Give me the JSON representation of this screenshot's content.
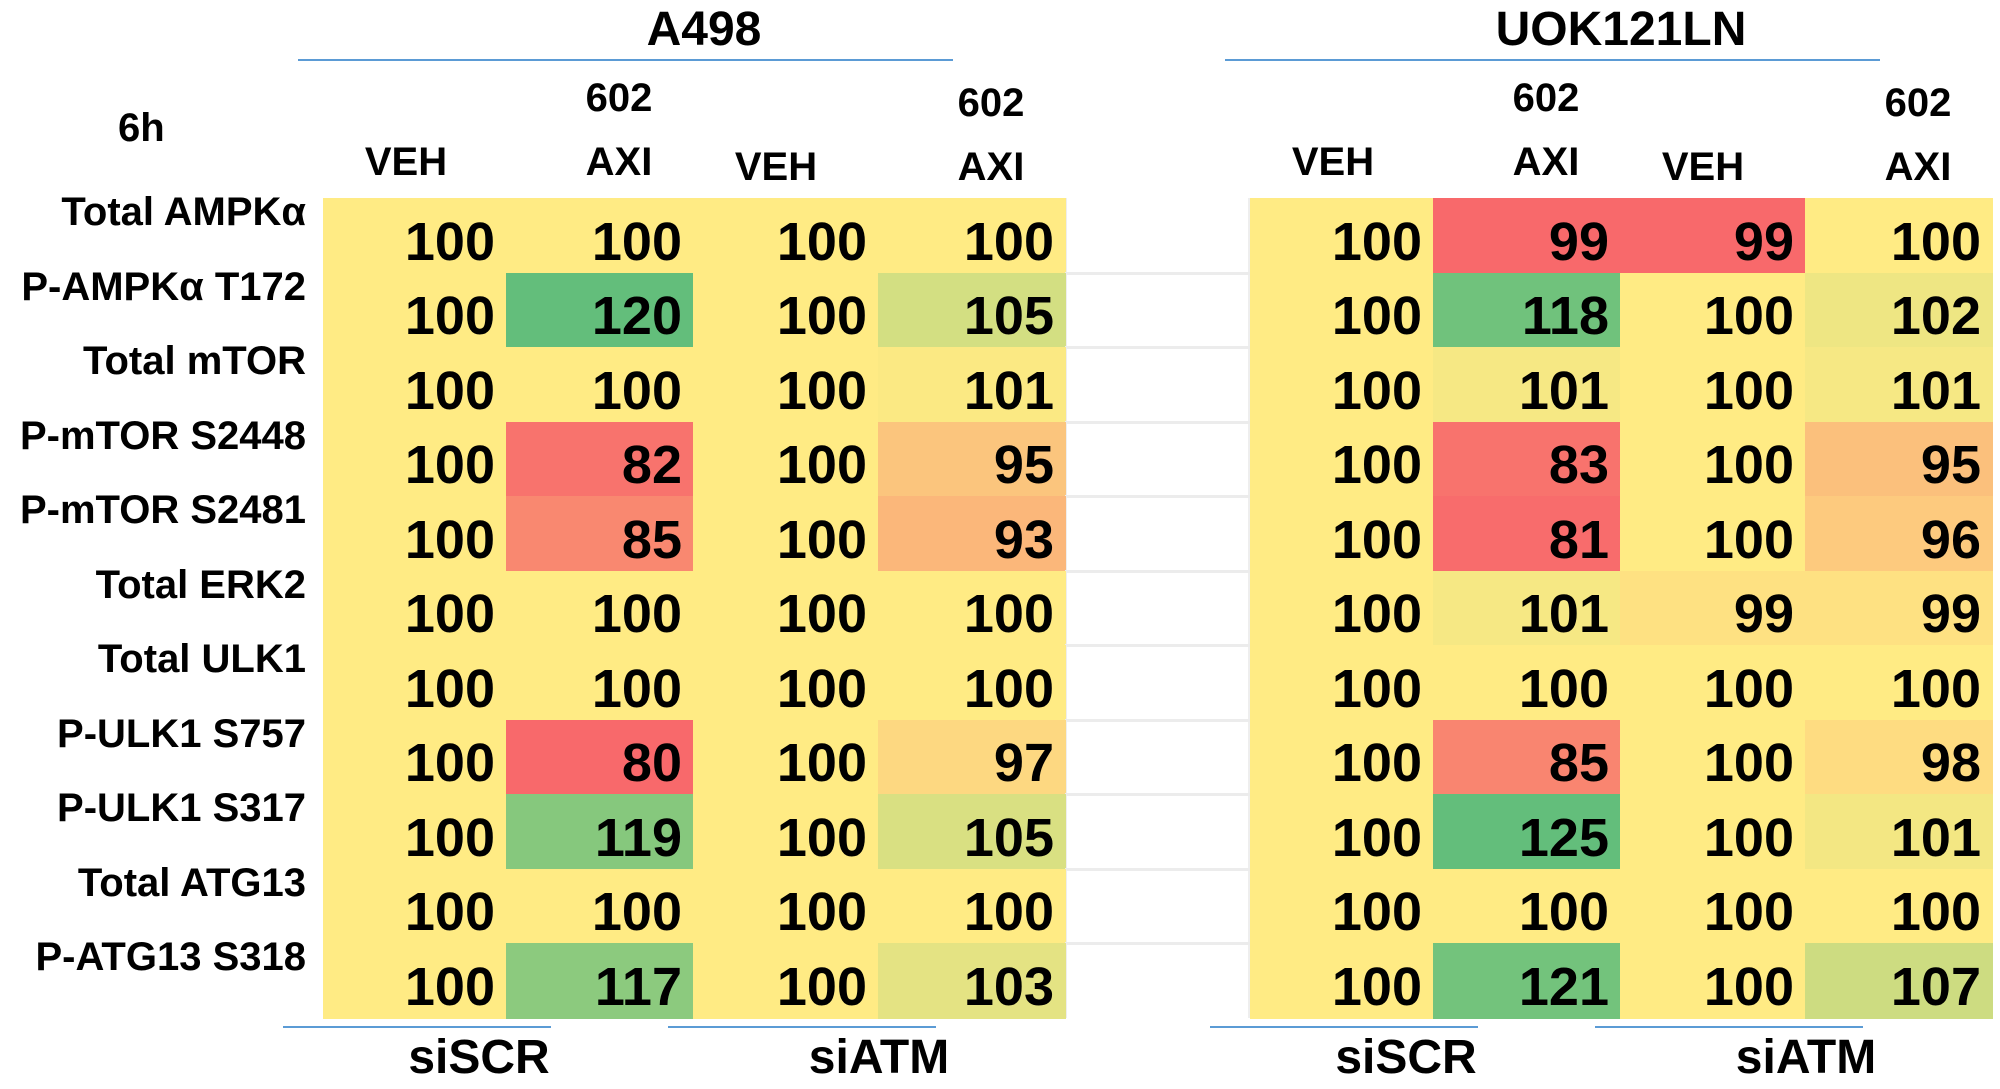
{
  "chart_data": {
    "type": "heatmap",
    "time_label": "6h",
    "cell_lines": [
      "A498",
      "UOK121LN"
    ],
    "groups": [
      "siSCR",
      "siATM"
    ],
    "columns": [
      {
        "line1": "",
        "line2": "VEH"
      },
      {
        "line1": "602",
        "line2": "AXI"
      },
      {
        "line1": "",
        "line2": "VEH"
      },
      {
        "line1": "602",
        "line2": "AXI"
      }
    ],
    "rows": [
      {
        "label": "Total AMPKα",
        "A498": [
          100,
          100,
          100,
          100
        ],
        "A498_colors": [
          "#FFEB84",
          "#FFEB84",
          "#FFEB84",
          "#FFEB84"
        ],
        "A498_mark": "",
        "UOK121LN": [
          100,
          99,
          99,
          100
        ],
        "UOK121LN_colors": [
          "#FFEB84",
          "#F8696B",
          "#F8696B",
          "#FFEB84"
        ],
        "UOK121LN_mark": ""
      },
      {
        "label": "P-AMPKα T172",
        "A498": [
          100,
          120,
          100,
          105
        ],
        "A498_colors": [
          "#FFEB84",
          "#63BE7B",
          "#FFEB84",
          "#D3DF82"
        ],
        "A498_mark": "#",
        "UOK121LN": [
          100,
          118,
          100,
          102
        ],
        "UOK121LN_colors": [
          "#FFEB84",
          "#70C27C",
          "#FFEB84",
          "#EEE683"
        ],
        "UOK121LN_mark": "#"
      },
      {
        "label": "Total mTOR",
        "A498": [
          100,
          100,
          100,
          101
        ],
        "A498_colors": [
          "#FFEB84",
          "#FFEB84",
          "#FFEB84",
          "#FBE983"
        ],
        "A498_mark": "",
        "UOK121LN": [
          100,
          101,
          100,
          101
        ],
        "UOK121LN_colors": [
          "#FFEB84",
          "#F6E884",
          "#FFEB84",
          "#F6E884"
        ],
        "UOK121LN_mark": ""
      },
      {
        "label": "P-mTOR S2448",
        "A498": [
          100,
          82,
          100,
          95
        ],
        "A498_colors": [
          "#FFEB84",
          "#F8736D",
          "#FFEB84",
          "#FBC57D"
        ],
        "A498_mark": "*",
        "UOK121LN": [
          100,
          83,
          100,
          95
        ],
        "UOK121LN_colors": [
          "#FFEB84",
          "#F8736D",
          "#FFEB84",
          "#FBC07C"
        ],
        "UOK121LN_mark": "*"
      },
      {
        "label": "P-mTOR S2481",
        "A498": [
          100,
          85,
          100,
          93
        ],
        "A498_colors": [
          "#FFEB84",
          "#F98870",
          "#FFEB84",
          "#FBB77A"
        ],
        "A498_mark": "*",
        "UOK121LN": [
          100,
          81,
          100,
          96
        ],
        "UOK121LN_colors": [
          "#FFEB84",
          "#F86C6C",
          "#FFEB84",
          "#FDCA7E"
        ],
        "UOK121LN_mark": "*"
      },
      {
        "label": "Total ERK2",
        "A498": [
          100,
          100,
          100,
          100
        ],
        "A498_colors": [
          "#FFEB84",
          "#FFEB84",
          "#FFEB84",
          "#FFEB84"
        ],
        "A498_mark": "",
        "UOK121LN": [
          100,
          101,
          99,
          99
        ],
        "UOK121LN_colors": [
          "#FFEB84",
          "#F6E884",
          "#FEE182",
          "#FEE182"
        ],
        "UOK121LN_mark": ""
      },
      {
        "label": "Total ULK1",
        "A498": [
          100,
          100,
          100,
          100
        ],
        "A498_colors": [
          "#FFEB84",
          "#FFEB84",
          "#FFEB84",
          "#FFEB84"
        ],
        "A498_mark": "",
        "UOK121LN": [
          100,
          100,
          100,
          100
        ],
        "UOK121LN_colors": [
          "#FFEB84",
          "#FFEB84",
          "#FFEB84",
          "#FFEB84"
        ],
        "UOK121LN_mark": ""
      },
      {
        "label": "P-ULK1 S757",
        "A498": [
          100,
          80,
          100,
          97
        ],
        "A498_colors": [
          "#FFEB84",
          "#F8696B",
          "#FFEB84",
          "#FDD881"
        ],
        "A498_mark": "*",
        "UOK121LN": [
          100,
          85,
          100,
          98
        ],
        "UOK121LN_colors": [
          "#FFEB84",
          "#F98570",
          "#FFEB84",
          "#FEDC81"
        ],
        "UOK121LN_mark": "*"
      },
      {
        "label": "P-ULK1 S317",
        "A498": [
          100,
          119,
          100,
          105
        ],
        "A498_colors": [
          "#FFEB84",
          "#86C87D",
          "#FFEB84",
          "#D9E082"
        ],
        "A498_mark": "#",
        "UOK121LN": [
          100,
          125,
          100,
          101
        ],
        "UOK121LN_colors": [
          "#FFEB84",
          "#63BE7B",
          "#FFEB84",
          "#F3E783"
        ],
        "UOK121LN_mark": "#"
      },
      {
        "label": "Total ATG13",
        "A498": [
          100,
          100,
          100,
          100
        ],
        "A498_colors": [
          "#FFEB84",
          "#FFEB84",
          "#FFEB84",
          "#FFEB84"
        ],
        "A498_mark": "",
        "UOK121LN": [
          100,
          100,
          100,
          100
        ],
        "UOK121LN_colors": [
          "#FFEB84",
          "#FFEB84",
          "#FFEB84",
          "#FFEB84"
        ],
        "UOK121LN_mark": ""
      },
      {
        "label": "P-ATG13 S318",
        "A498": [
          100,
          117,
          100,
          103
        ],
        "A498_colors": [
          "#FFEB84",
          "#8CCA7E",
          "#FFEB84",
          "#E4E383"
        ],
        "A498_mark": "#",
        "UOK121LN": [
          100,
          121,
          100,
          107
        ],
        "UOK121LN_colors": [
          "#FFEB84",
          "#73C37C",
          "#FFEB84",
          "#CDDC81"
        ],
        "UOK121LN_mark": "#"
      }
    ]
  }
}
